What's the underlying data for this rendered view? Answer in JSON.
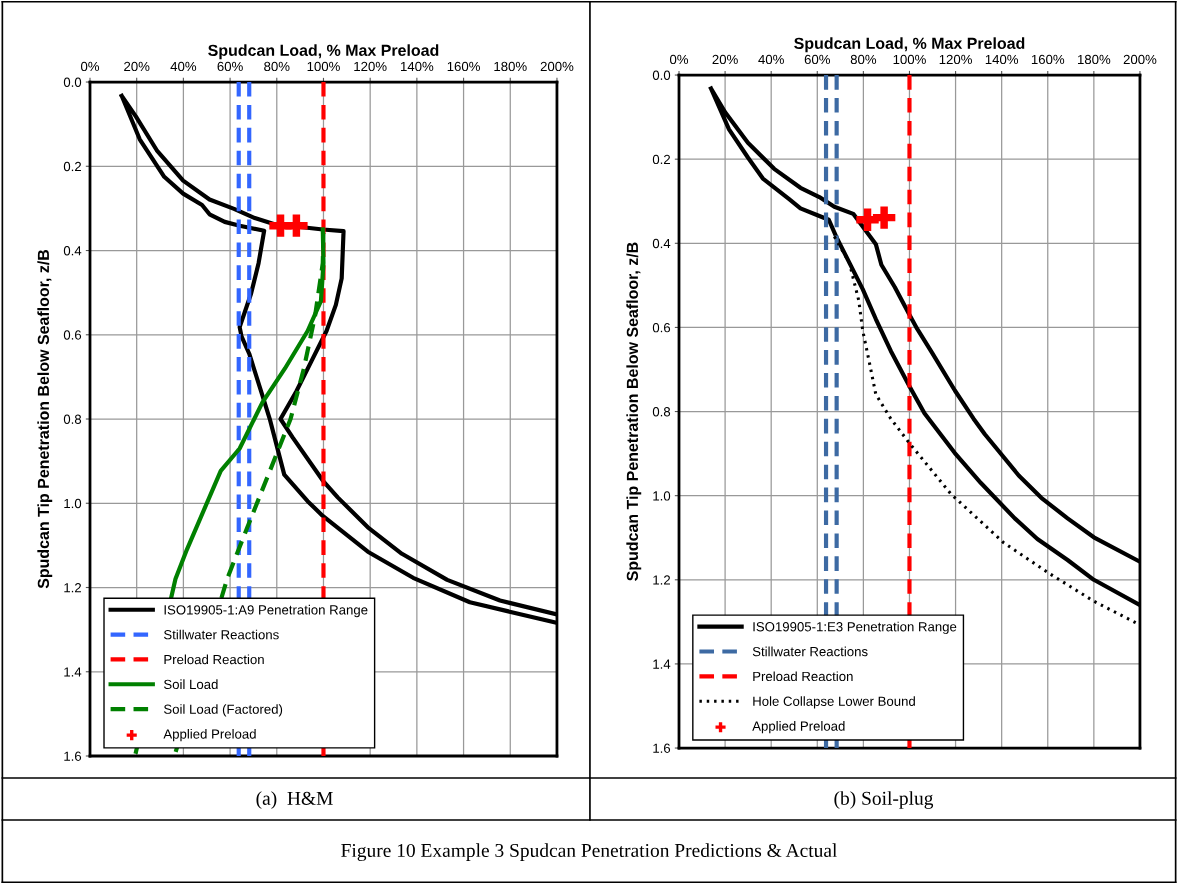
{
  "chart_data": [
    {
      "type": "line",
      "xlabel": "Spudcan Load, % Max Preload",
      "ylabel": "Spudcan Tip Penetration Below Seafloor, z/B",
      "xlim": [
        0,
        200
      ],
      "xticks": [
        {
          "value": 0,
          "label": "0%"
        },
        {
          "value": 20,
          "label": "20%"
        },
        {
          "value": 40,
          "label": "40%"
        },
        {
          "value": 60,
          "label": "60%"
        },
        {
          "value": 80,
          "label": "80%"
        },
        {
          "value": 100,
          "label": "100%"
        },
        {
          "value": 120,
          "label": "120%"
        },
        {
          "value": 140,
          "label": "140%"
        },
        {
          "value": 160,
          "label": "160%"
        },
        {
          "value": 180,
          "label": "180%"
        },
        {
          "value": 200,
          "label": "200%"
        }
      ],
      "ylim": [
        1.6,
        0
      ],
      "yticks": [
        {
          "value": 0,
          "label": "0.0"
        },
        {
          "value": 0.2,
          "label": "0.2"
        },
        {
          "value": 0.4,
          "label": "0.4"
        },
        {
          "value": 0.6,
          "label": "0.6"
        },
        {
          "value": 0.8,
          "label": "0.8"
        },
        {
          "value": 1.0,
          "label": "1.0"
        },
        {
          "value": 1.2,
          "label": "1.2"
        },
        {
          "value": 1.4,
          "label": "1.4"
        },
        {
          "value": 1.6,
          "label": "1.6"
        }
      ],
      "grid": true,
      "legend": "bottom left",
      "series": [
        {
          "name": "ISO19905-1:A9 Penetration Range",
          "color": "#000000",
          "line_style": "solid",
          "x": [
            13.6,
            19.7,
            28.6,
            39.9,
            51.2,
            61.7,
            70.6,
            78.7,
            99.7,
            108.6,
            107.8,
            105.3,
            101.3,
            94.8,
            88.4,
            81.6,
            86.7,
            99.7,
            106.1,
            119,
            133.6,
            153,
            175.6,
            200,
            null,
            13.6,
            21.3,
            31.8,
            39.9,
            48,
            51.2,
            57.7,
            64.1,
            74.6,
            72.2,
            69,
            64.1,
            64.9,
            68.2,
            73.8,
            77,
            83.2,
            93.2,
            99.7,
            119,
            138.4,
            162.7,
            200
          ],
          "values": [
            0.033,
            0.082,
            0.162,
            0.234,
            0.279,
            0.301,
            0.323,
            0.337,
            0.35,
            0.354,
            0.466,
            0.529,
            0.591,
            0.663,
            0.734,
            0.8,
            0.843,
            0.946,
            0.986,
            1.057,
            1.12,
            1.182,
            1.231,
            1.264,
            null,
            0.033,
            0.136,
            0.225,
            0.265,
            0.292,
            0.314,
            0.332,
            0.341,
            0.353,
            0.43,
            0.502,
            0.582,
            0.604,
            0.645,
            0.743,
            0.8,
            0.932,
            0.995,
            1.03,
            1.115,
            1.177,
            1.235,
            1.284
          ]
        },
        {
          "name": "Stillwater Reactions",
          "color": "#3366ff",
          "line_style": "dashed",
          "x": [
            63.7,
            63.7,
            null,
            68.2,
            68.2
          ],
          "values": [
            0,
            1.6,
            null,
            0,
            1.6
          ]
        },
        {
          "name": "Preload Reaction",
          "type": "line",
          "color": "#ff0000",
          "line_style": "dashed",
          "x": [
            100,
            100
          ],
          "values": [
            0,
            1.6
          ]
        },
        {
          "name": "Soil Load",
          "color": "#008000",
          "line_style": "solid",
          "x": [
            99.7,
            100,
            98.9,
            93.2,
            83.5,
            73.8,
            64.1,
            56,
            41.5,
            36.6,
            19.7
          ],
          "values": [
            0.35,
            0.43,
            0.52,
            0.591,
            0.68,
            0.761,
            0.87,
            0.923,
            1.11,
            1.18,
            1.59
          ]
        },
        {
          "name": "Soil Load (Factored)",
          "color": "#008000",
          "line_style": "dashed",
          "x": [
            36.7,
            58.7,
            67.4,
            80.3,
            85.9,
            91.6,
            96.4,
            99.7,
            100
          ],
          "values": [
            1.59,
            1.18,
            1.057,
            0.878,
            0.8,
            0.68,
            0.555,
            0.43,
            0.35
          ]
        },
        {
          "name": "Applied Preload",
          "type": "scatter",
          "color": "#ff0000",
          "marker": "cross",
          "x": [
            81.6,
            88.4
          ],
          "values": [
            0.341,
            0.341
          ]
        }
      ],
      "annotations": [
        "(a)  H&M"
      ]
    },
    {
      "type": "line",
      "xlabel": "Spudcan Load, % Max Preload",
      "ylabel": "Spudcan Tip Penetration Below Seafloor, z/B",
      "xlim": [
        0,
        200
      ],
      "xticks": [
        {
          "value": 0,
          "label": "0%"
        },
        {
          "value": 20,
          "label": "20%"
        },
        {
          "value": 40,
          "label": "40%"
        },
        {
          "value": 60,
          "label": "60%"
        },
        {
          "value": 80,
          "label": "80%"
        },
        {
          "value": 100,
          "label": "100%"
        },
        {
          "value": 120,
          "label": "120%"
        },
        {
          "value": 140,
          "label": "140%"
        },
        {
          "value": 160,
          "label": "160%"
        },
        {
          "value": 180,
          "label": "180%"
        },
        {
          "value": 200,
          "label": "200%"
        }
      ],
      "ylim": [
        1.6,
        0
      ],
      "yticks": [
        {
          "value": 0,
          "label": "0.0"
        },
        {
          "value": 0.2,
          "label": "0.2"
        },
        {
          "value": 0.4,
          "label": "0.4"
        },
        {
          "value": 0.6,
          "label": "0.6"
        },
        {
          "value": 0.8,
          "label": "0.8"
        },
        {
          "value": 1.0,
          "label": "1.0"
        },
        {
          "value": 1.2,
          "label": "1.2"
        },
        {
          "value": 1.4,
          "label": "1.4"
        },
        {
          "value": 1.6,
          "label": "1.6"
        }
      ],
      "grid": true,
      "legend": "bottom left",
      "series": [
        {
          "name": "ISO19905-1:E3 Penetration Range",
          "color": "#000000",
          "line_style": "solid",
          "x": [
            13.9,
            20.1,
            29.9,
            41.3,
            52.7,
            60.9,
            67.4,
            75.6,
            85.4,
            87.8,
            93.6,
            100.1,
            103.3,
            109.9,
            119.7,
            127.8,
            132.7,
            147.4,
            157.2,
            168.6,
            180,
            200,
            null,
            13.9,
            21.7,
            29.9,
            36.4,
            47.8,
            52.7,
            60.9,
            65,
            68.2,
            73.9,
            79.7,
            85.4,
            91.9,
            100.1,
            106.5,
            119.6,
            131,
            145.7,
            155.5,
            168.6,
            180,
            200
          ],
          "values": [
            0.032,
            0.089,
            0.161,
            0.223,
            0.268,
            0.29,
            0.313,
            0.33,
            0.402,
            0.451,
            0.504,
            0.571,
            0.603,
            0.661,
            0.75,
            0.817,
            0.854,
            0.952,
            1.005,
            1.054,
            1.099,
            1.157,
            null,
            0.032,
            0.129,
            0.196,
            0.246,
            0.295,
            0.317,
            0.335,
            0.344,
            0.384,
            0.446,
            0.509,
            0.58,
            0.656,
            0.741,
            0.804,
            0.898,
            0.97,
            1.054,
            1.103,
            1.153,
            1.2,
            1.26
          ]
        },
        {
          "name": "Stillwater Reactions",
          "color": "#3d6aa3",
          "line_style": "dashed",
          "x": [
            63.8,
            63.8,
            null,
            68.4,
            68.4
          ],
          "values": [
            0,
            1.6,
            null,
            0,
            1.6
          ]
        },
        {
          "name": "Preload Reaction",
          "type": "line",
          "color": "#ff0000",
          "line_style": "dashed",
          "x": [
            100,
            100
          ],
          "values": [
            0,
            1.6
          ]
        },
        {
          "name": "Hole Collapse Lower Bound",
          "color": "#000000",
          "line_style": "dotted",
          "x": [
            67.4,
            73.9,
            78,
            79.7,
            82.1,
            85.4,
            91.9,
            100.1,
            118,
            140.9,
            160.4,
            180,
            198.9
          ],
          "values": [
            0.384,
            0.446,
            0.536,
            0.607,
            0.67,
            0.759,
            0.817,
            0.876,
            0.996,
            1.112,
            1.184,
            1.251,
            1.304
          ]
        },
        {
          "name": "Applied Preload",
          "type": "scatter",
          "color": "#ff0000",
          "marker": "cross",
          "x": [
            81.8,
            89
          ],
          "values": [
            0.344,
            0.339
          ]
        }
      ],
      "annotations": [
        "(b) Soil-plug",
        "Figure 10 Example 3 Spudcan Penetration Predictions & Actual"
      ]
    }
  ]
}
